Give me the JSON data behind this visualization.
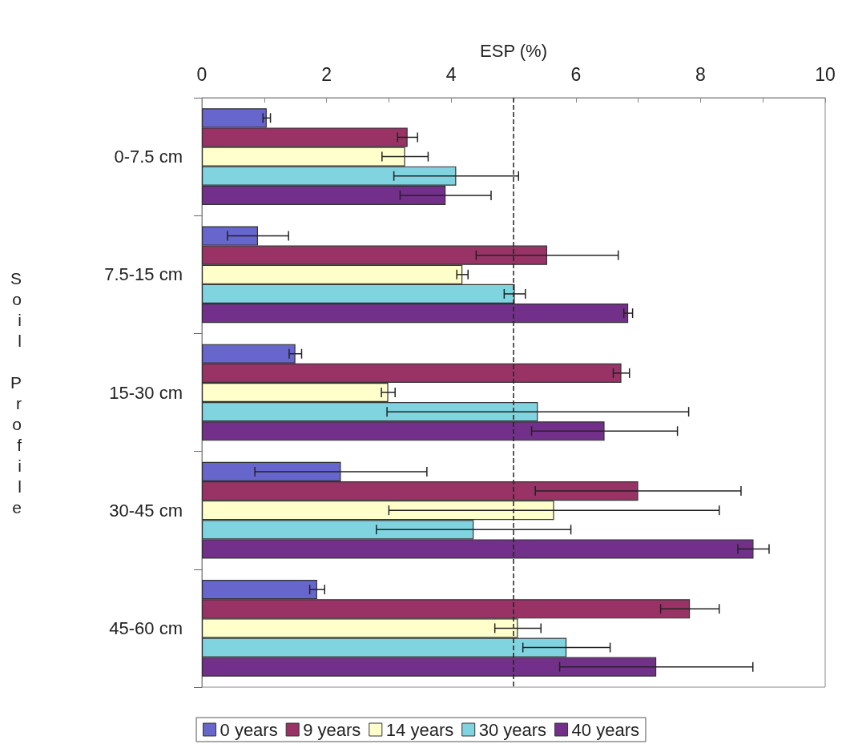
{
  "chart_data": {
    "type": "bar",
    "orientation": "horizontal",
    "xlabel": "ESP (%)",
    "ylabel": "Soil Profile",
    "categories": [
      "0-7.5 cm",
      "7.5-15 cm",
      "15-30 cm",
      "30-45 cm",
      "45-60 cm"
    ],
    "series": [
      {
        "name": "0 years",
        "color": "#6666cc",
        "values": [
          1.04,
          0.9,
          1.5,
          2.23,
          1.85
        ],
        "errors": [
          0.06,
          0.49,
          0.1,
          1.38,
          0.12
        ]
      },
      {
        "name": "9 years",
        "color": "#993366",
        "values": [
          3.3,
          5.54,
          6.73,
          7.0,
          7.83
        ],
        "errors": [
          0.16,
          1.14,
          0.13,
          1.65,
          0.47
        ]
      },
      {
        "name": "14 years",
        "color": "#ffffcc",
        "values": [
          3.26,
          4.18,
          2.99,
          5.65,
          5.07
        ],
        "errors": [
          0.37,
          0.09,
          0.11,
          2.65,
          0.37
        ]
      },
      {
        "name": "30 years",
        "color": "#80d4e0",
        "values": [
          4.08,
          5.02,
          5.39,
          4.36,
          5.85
        ],
        "errors": [
          1.0,
          0.17,
          2.42,
          1.56,
          0.7
        ]
      },
      {
        "name": "40 years",
        "color": "#73308a",
        "values": [
          3.91,
          6.84,
          6.46,
          8.85,
          7.29
        ],
        "errors": [
          0.73,
          0.07,
          1.17,
          0.25,
          1.55
        ]
      }
    ],
    "xlim": [
      0,
      10
    ],
    "xticks": [
      0,
      {
        "value": 1,
        "label": null
      },
      2,
      {
        "value": 3,
        "label": null
      },
      4,
      {
        "value": 5,
        "label": null
      },
      6,
      {
        "value": 7,
        "label": null
      },
      8,
      {
        "value": 9,
        "label": null
      },
      10
    ],
    "ref_lines": [
      {
        "axis": "x",
        "value": 5,
        "line_style": "dashed",
        "color": "#222222"
      }
    ],
    "grid": false,
    "legend": "bottom"
  }
}
